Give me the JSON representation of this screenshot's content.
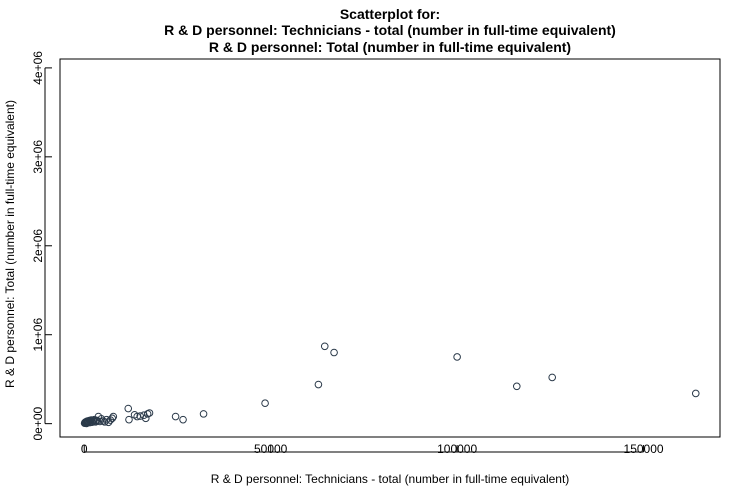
{
  "chart_data": {
    "type": "scatter",
    "title": "Scatterplot for:",
    "subtitle_lines": [
      "R & D personnel: Technicians - total (number in full-time equivalent)",
      "R & D personnel: Total (number in full-time equivalent)"
    ],
    "xlabel": "R & D personnel: Technicians - total (number in full-time equivalent)",
    "ylabel": "R & D personnel: Total (number in full-time equivalent)",
    "xlim": [
      -6500,
      170500
    ],
    "ylim": [
      -150000,
      4100000
    ],
    "x_ticks": [
      0,
      50000,
      100000,
      150000
    ],
    "x_tick_labels": [
      "0",
      "50000",
      "100000",
      "150000"
    ],
    "y_ticks": [
      0,
      1000000,
      2000000,
      3000000,
      4000000
    ],
    "y_tick_labels": [
      "0e+00",
      "1e+06",
      "2e+06",
      "3e+06",
      "4e+06"
    ],
    "grid": false,
    "marker": "open-circle",
    "colors": {
      "point_stroke": "#2b3a4a",
      "axis": "#000000",
      "background": "#ffffff"
    },
    "points": [
      [
        100,
        5000
      ],
      [
        200,
        12000
      ],
      [
        300,
        8000
      ],
      [
        400,
        20000
      ],
      [
        500,
        15000
      ],
      [
        600,
        3000
      ],
      [
        700,
        25000
      ],
      [
        800,
        10000
      ],
      [
        900,
        30000
      ],
      [
        1000,
        18000
      ],
      [
        1200,
        22000
      ],
      [
        1400,
        35000
      ],
      [
        1500,
        12000
      ],
      [
        1700,
        28000
      ],
      [
        1900,
        40000
      ],
      [
        2100,
        16000
      ],
      [
        2300,
        33000
      ],
      [
        2500,
        25000
      ],
      [
        2700,
        45000
      ],
      [
        3000,
        20000
      ],
      [
        3200,
        38000
      ],
      [
        3500,
        30000
      ],
      [
        3800,
        80000
      ],
      [
        4200,
        25000
      ],
      [
        4600,
        55000
      ],
      [
        5000,
        30000
      ],
      [
        5500,
        20000
      ],
      [
        6000,
        45000
      ],
      [
        6500,
        15000
      ],
      [
        7000,
        40000
      ],
      [
        7500,
        60000
      ],
      [
        7800,
        80000
      ],
      [
        11800,
        170000
      ],
      [
        12000,
        45000
      ],
      [
        13500,
        100000
      ],
      [
        14200,
        80000
      ],
      [
        15000,
        85000
      ],
      [
        16000,
        95000
      ],
      [
        16500,
        60000
      ],
      [
        17000,
        110000
      ],
      [
        17500,
        120000
      ],
      [
        24500,
        80000
      ],
      [
        26500,
        45000
      ],
      [
        32000,
        110000
      ],
      [
        48500,
        230000
      ],
      [
        62800,
        440000
      ],
      [
        64500,
        870000
      ],
      [
        67000,
        800000
      ],
      [
        100000,
        750000
      ],
      [
        116000,
        420000
      ],
      [
        125500,
        520000
      ],
      [
        164000,
        340000
      ]
    ]
  }
}
